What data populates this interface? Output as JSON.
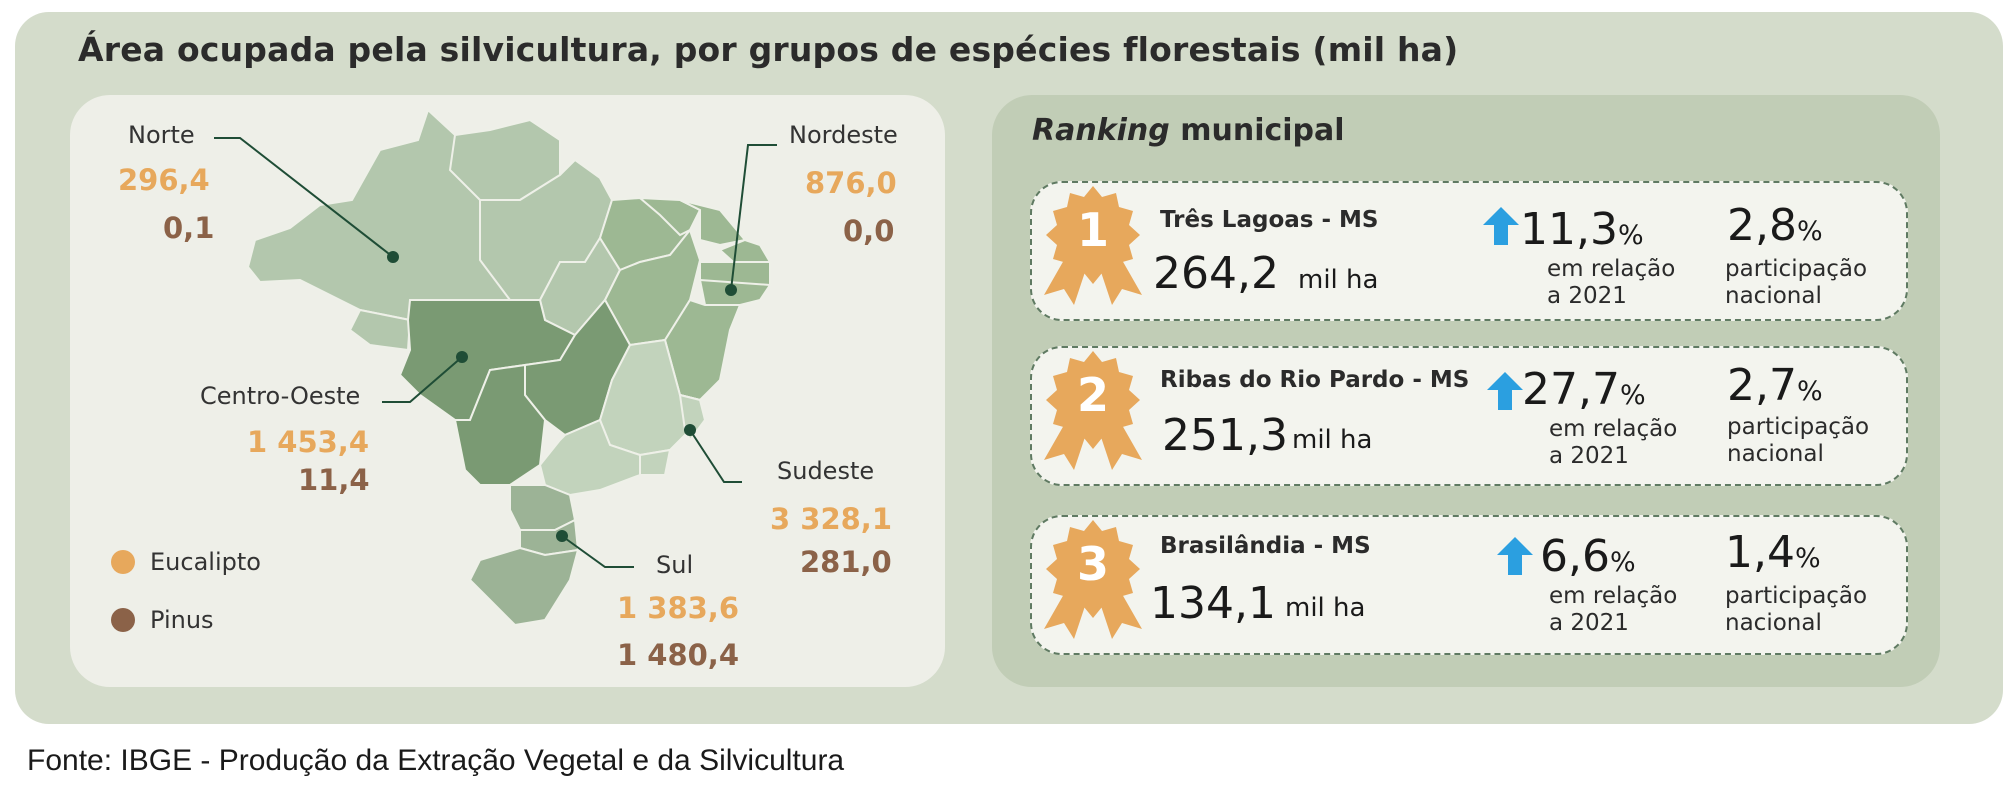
{
  "title": "Área ocupada pela silvicultura, por grupos de espécies florestais (mil ha)",
  "colors": {
    "eucalipto": "#e7a85c",
    "pinus": "#8b6248",
    "map_dark": "#7a9a73",
    "map_light": "#b3c7ad",
    "card_border": "#5f7a62",
    "arrow": "#2b9fe0"
  },
  "regions": {
    "norte": {
      "name": "Norte",
      "eucalipto": "296,4",
      "pinus": "0,1"
    },
    "nordeste": {
      "name": "Nordeste",
      "eucalipto": "876,0",
      "pinus": "0,0"
    },
    "centro_oeste": {
      "name": "Centro-Oeste",
      "eucalipto": "1 453,4",
      "pinus": "11,4"
    },
    "sudeste": {
      "name": "Sudeste",
      "eucalipto": "3 328,1",
      "pinus": "281,0"
    },
    "sul": {
      "name": "Sul",
      "eucalipto": "1 383,6",
      "pinus": "1 480,4"
    }
  },
  "legend": {
    "eucalipto": "Eucalipto",
    "pinus": "Pinus"
  },
  "ranking": {
    "title_italic": "Ranking",
    "title_rest": " municipal",
    "items": [
      {
        "rank": "1",
        "municipality": "Três Lagoas - MS",
        "area": "264,2",
        "unit": "mil ha",
        "growth": "11,3",
        "share": "2,8"
      },
      {
        "rank": "2",
        "municipality": "Ribas do Rio Pardo - MS",
        "area": "251,3",
        "unit": "mil ha",
        "growth": "27,7",
        "share": "2,7"
      },
      {
        "rank": "3",
        "municipality": "Brasilândia - MS",
        "area": "134,1",
        "unit": "mil ha",
        "growth": "6,6",
        "share": "1,4"
      }
    ],
    "percent_symbol": "%",
    "growth_line1": "em relação",
    "growth_line2": "a 2021",
    "share_line1": "participação",
    "share_line2": "nacional",
    "arrow_icon": "up-arrow-icon",
    "badge_icon": "award-ribbon-icon"
  },
  "source": "Fonte: IBGE - Produção da Extração Vegetal e da Silvicultura"
}
